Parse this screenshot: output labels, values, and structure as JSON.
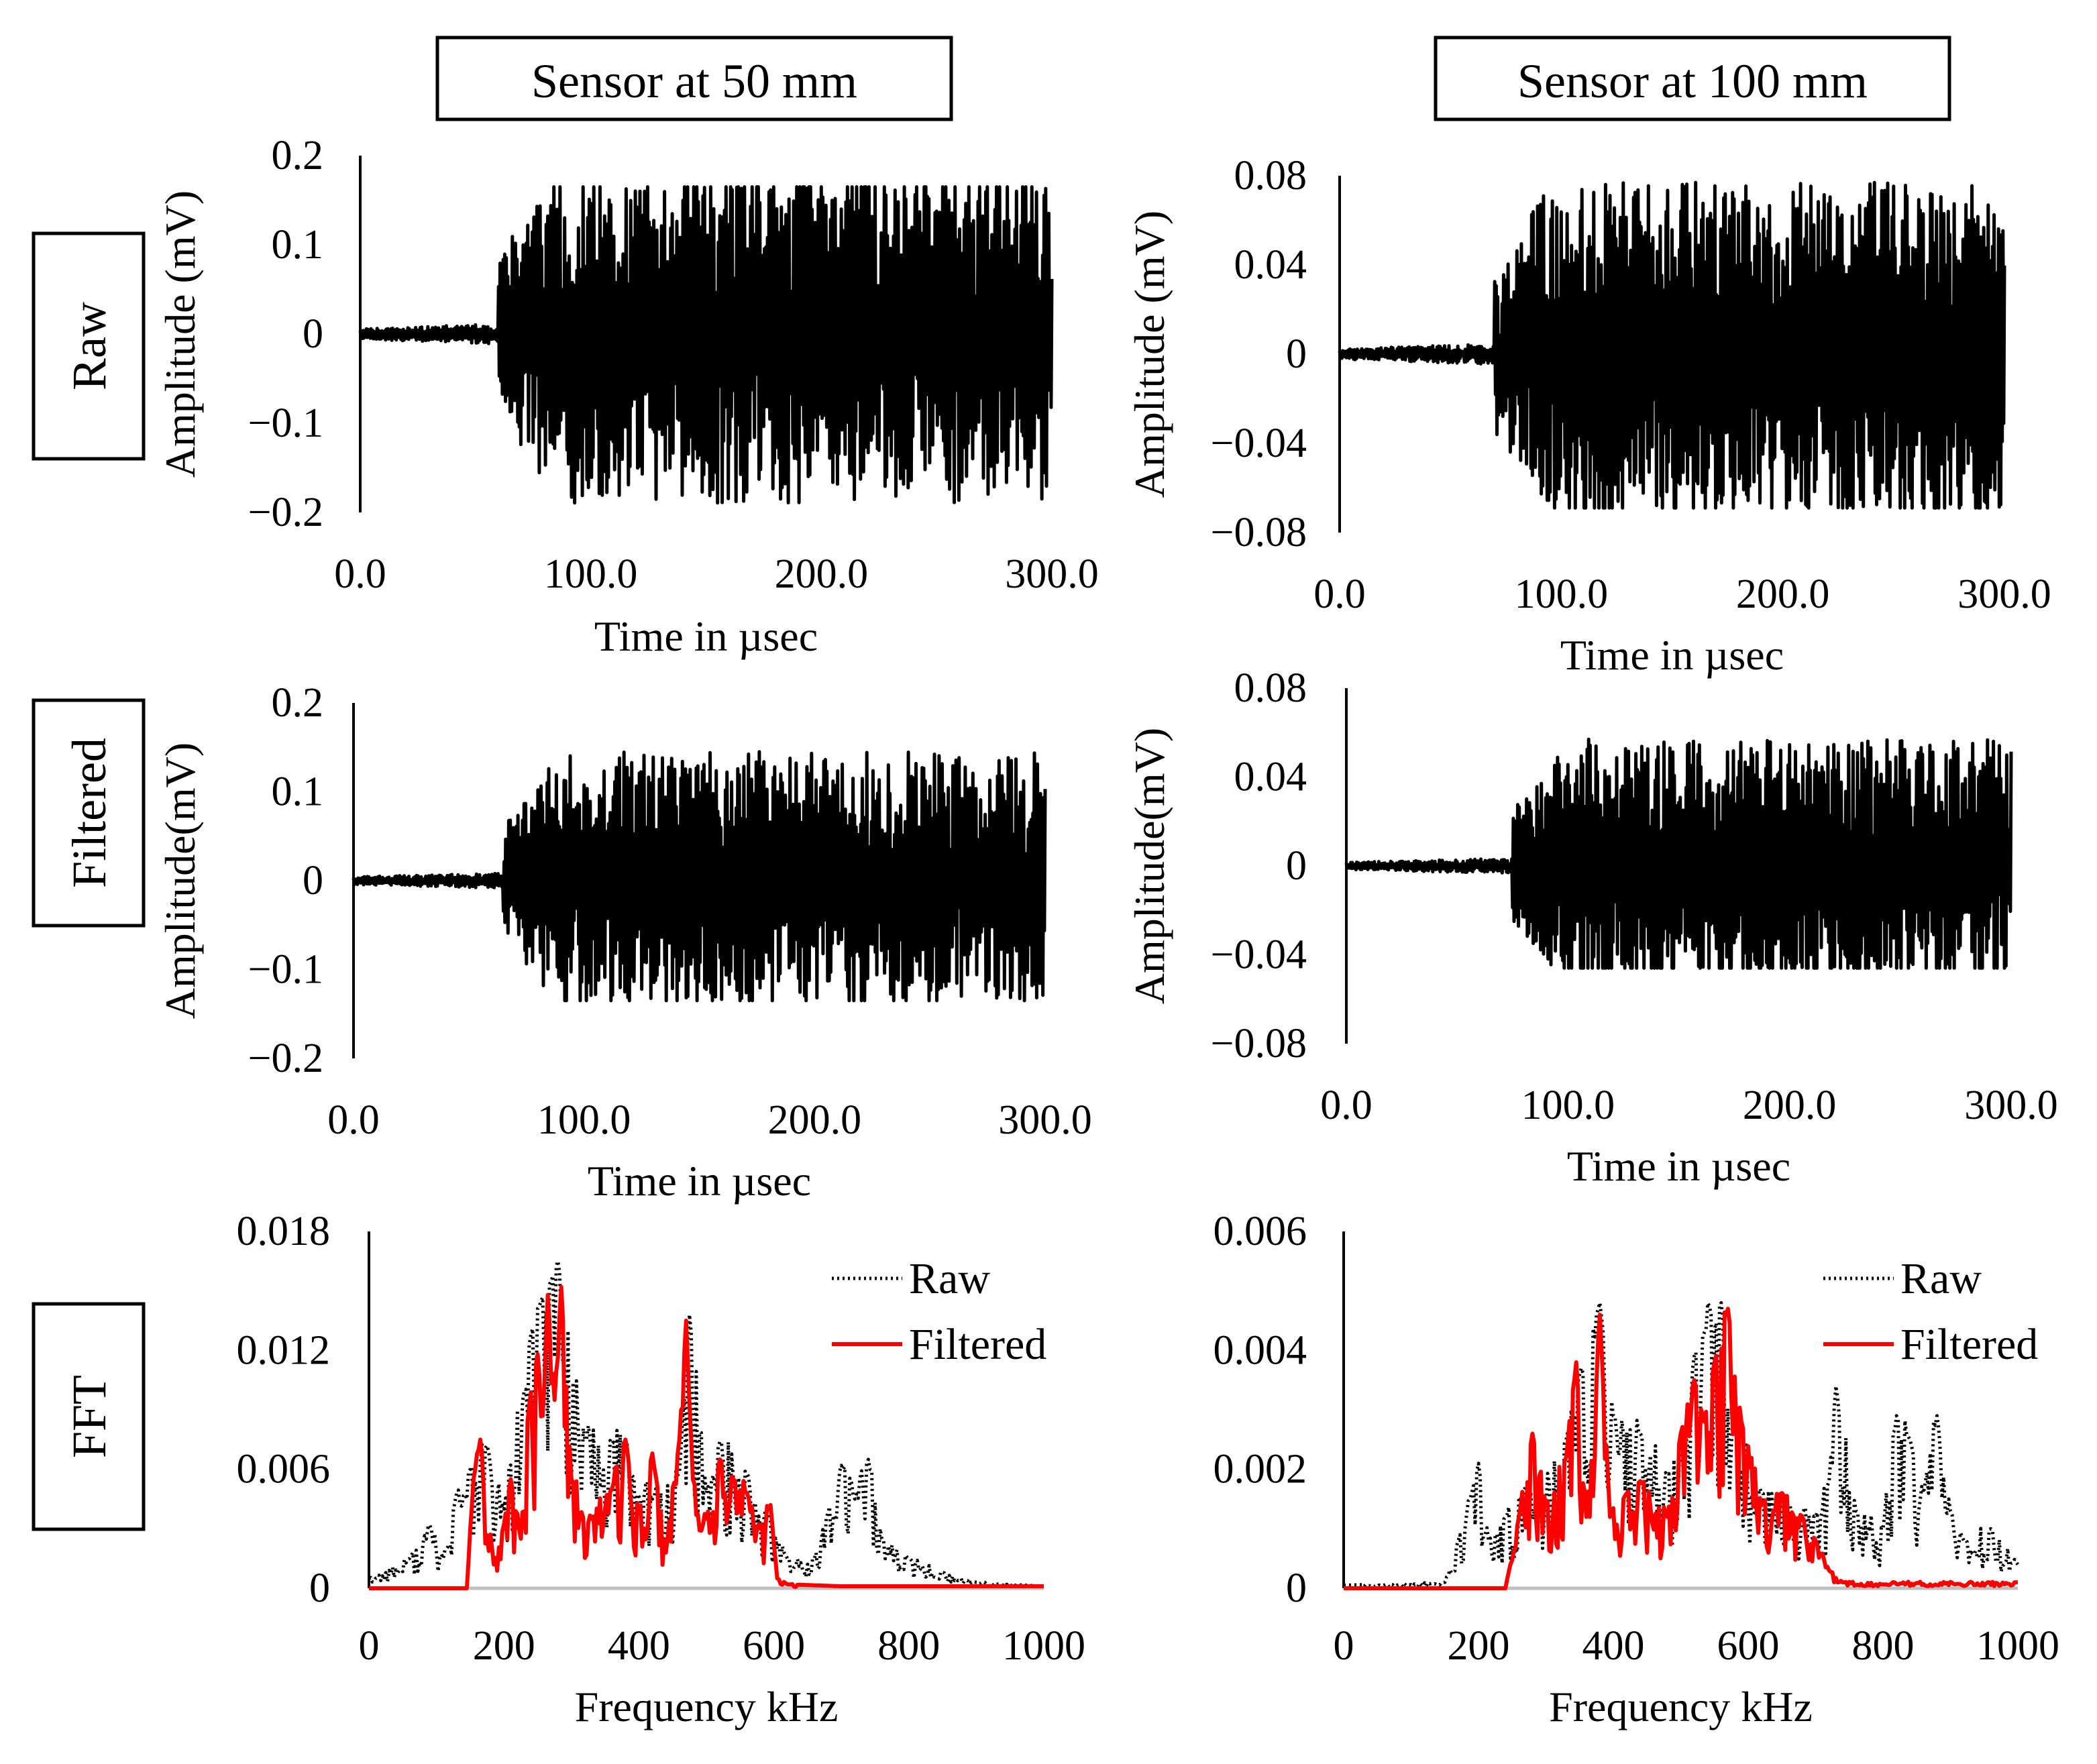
{
  "column_headers": [
    "Sensor at 50 mm",
    "Sensor at 100 mm"
  ],
  "row_headers": [
    "Raw",
    "Filtered",
    "FFT"
  ],
  "colors": {
    "raw": "#000000",
    "filtered": "#ff0000",
    "baseline": "#bfbfbf"
  },
  "chart_data": [
    {
      "id": "raw-50",
      "type": "line",
      "title": "",
      "xlabel": "Time in µsec",
      "ylabel": "Amplitude (mV)",
      "xlim": [
        0,
        300
      ],
      "ylim": [
        -0.2,
        0.2
      ],
      "xticks": [
        "0.0",
        "100.0",
        "200.0",
        "300.0"
      ],
      "yticks": [
        "0.2",
        "0.1",
        "0",
        "−0.1",
        "−0.2"
      ],
      "yticks_values": [
        0.2,
        0.1,
        0,
        -0.1,
        -0.2
      ],
      "legend": "none",
      "series": [
        {
          "signal_onset": 60,
          "x_end": 300,
          "peak_amplitude": 0.165,
          "min_amplitude": -0.19
        }
      ]
    },
    {
      "id": "raw-100",
      "type": "line",
      "title": "",
      "xlabel": "Time in µsec",
      "ylabel": "Amplitude (mV)",
      "xlim": [
        0,
        300
      ],
      "ylim": [
        -0.08,
        0.08
      ],
      "xticks": [
        "0.0",
        "100.0",
        "200.0",
        "300.0"
      ],
      "yticks": [
        "0.08",
        "0.04",
        "0",
        "−0.04",
        "−0.08"
      ],
      "yticks_values": [
        0.08,
        0.04,
        0,
        -0.04,
        -0.08
      ],
      "legend": "none",
      "series": [
        {
          "signal_onset": 70,
          "x_end": 300,
          "peak_amplitude": 0.077,
          "min_amplitude": -0.069
        }
      ]
    },
    {
      "id": "filtered-50",
      "type": "line",
      "title": "",
      "xlabel": "Time in µsec",
      "ylabel": "Amplitude(mV)",
      "xlim": [
        0,
        300
      ],
      "ylim": [
        -0.2,
        0.2
      ],
      "xticks": [
        "0.0",
        "100.0",
        "200.0",
        "300.0"
      ],
      "yticks": [
        "0.2",
        "0.1",
        "0",
        "−0.1",
        "−0.2"
      ],
      "yticks_values": [
        0.2,
        0.1,
        0,
        -0.1,
        -0.2
      ],
      "legend": "none",
      "series": [
        {
          "signal_onset": 65,
          "x_end": 300,
          "peak_amplitude": 0.145,
          "min_amplitude": -0.135
        }
      ]
    },
    {
      "id": "filtered-100",
      "type": "line",
      "title": "",
      "xlabel": "Time in µsec",
      "ylabel": "Amplitude(mV)",
      "xlim": [
        0,
        300
      ],
      "ylim": [
        -0.08,
        0.08
      ],
      "xticks": [
        "0.0",
        "100.0",
        "200.0",
        "300.0"
      ],
      "yticks": [
        "0.08",
        "0.04",
        "0",
        "−0.04",
        "−0.08"
      ],
      "yticks_values": [
        0.08,
        0.04,
        0,
        -0.04,
        -0.08
      ],
      "legend": "none",
      "series": [
        {
          "signal_onset": 75,
          "x_end": 300,
          "peak_amplitude": 0.057,
          "min_amplitude": -0.046
        }
      ]
    },
    {
      "id": "fft-50",
      "type": "line",
      "title": "",
      "xlabel": "Frequency kHz",
      "ylabel": "",
      "xlim": [
        0,
        1000
      ],
      "ylim": [
        0,
        0.018
      ],
      "xticks": [
        "0",
        "200",
        "400",
        "600",
        "800",
        "1000"
      ],
      "yticks": [
        "0.018",
        "0.012",
        "0.006",
        "0"
      ],
      "yticks_values": [
        0.018,
        0.012,
        0.006,
        0
      ],
      "legend": "top-right",
      "series": [
        {
          "name": "Raw",
          "style": "dotted",
          "x": [
            0,
            60,
            90,
            110,
            130,
            150,
            175,
            200,
            240,
            255,
            270,
            280,
            320,
            380,
            420,
            460,
            475,
            500,
            520,
            560,
            590,
            620,
            660,
            680,
            700,
            720,
            740,
            760,
            800,
            850,
            900,
            1000
          ],
          "y": [
            0.0005,
            0.0015,
            0.0032,
            0.0015,
            0.0048,
            0.006,
            0.0072,
            0.004,
            0.0128,
            0.0145,
            0.0155,
            0.0165,
            0.0075,
            0.0075,
            0.0045,
            0.0058,
            0.0138,
            0.0048,
            0.0074,
            0.0058,
            0.0038,
            0.0015,
            0.0015,
            0.0038,
            0.0062,
            0.0045,
            0.0065,
            0.0025,
            0.0015,
            0.0008,
            0.0003,
            0.0001
          ]
        },
        {
          "name": "Filtered",
          "style": "solid",
          "x": [
            0,
            145,
            155,
            165,
            185,
            200,
            210,
            225,
            238,
            250,
            258,
            265,
            275,
            285,
            300,
            330,
            360,
            380,
            400,
            420,
            440,
            460,
            470,
            480,
            500,
            520,
            540,
            560,
            580,
            595,
            605,
            620,
            700,
            1000
          ],
          "y": [
            0,
            0,
            0.0055,
            0.0075,
            0.0012,
            0.0032,
            0.0055,
            0.0025,
            0.0095,
            0.0118,
            0.0085,
            0.0148,
            0.0095,
            0.0152,
            0.0055,
            0.0035,
            0.005,
            0.0075,
            0.0038,
            0.0068,
            0.0018,
            0.0075,
            0.0135,
            0.0055,
            0.0035,
            0.0065,
            0.0055,
            0.0048,
            0.003,
            0.0042,
            0.0005,
            0.0002,
            0.0001,
            0.0001
          ]
        }
      ]
    },
    {
      "id": "fft-100",
      "type": "line",
      "title": "",
      "xlabel": "Frequency kHz",
      "ylabel": "",
      "xlim": [
        0,
        1000
      ],
      "ylim": [
        0,
        0.006
      ],
      "xticks": [
        "0",
        "200",
        "400",
        "600",
        "800",
        "1000"
      ],
      "yticks": [
        "0.006",
        "0.004",
        "0.002",
        "0"
      ],
      "yticks_values": [
        0.006,
        0.004,
        0.002,
        0
      ],
      "legend": "top-right",
      "series": [
        {
          "name": "Raw",
          "style": "dotted",
          "x": [
            0,
            150,
            170,
            190,
            200,
            215,
            240,
            270,
            290,
            330,
            350,
            380,
            400,
            440,
            480,
            500,
            520,
            535,
            560,
            580,
            620,
            660,
            700,
            720,
            730,
            760,
            800,
            820,
            840,
            860,
            880,
            900,
            920,
            960,
            1000
          ],
          "y": [
            5e-05,
            0.0001,
            0.0008,
            0.0016,
            0.0021,
            0.0008,
            0.0012,
            0.0017,
            0.0015,
            0.0025,
            0.0036,
            0.0048,
            0.0029,
            0.0026,
            0.0019,
            0.0021,
            0.0039,
            0.0043,
            0.0048,
            0.0028,
            0.0016,
            0.0014,
            0.0012,
            0.0018,
            0.0034,
            0.0013,
            0.001,
            0.0029,
            0.0025,
            0.0016,
            0.0029,
            0.0013,
            0.0008,
            0.001,
            0.0004
          ]
        },
        {
          "name": "Filtered",
          "style": "solid",
          "x": [
            0,
            240,
            260,
            280,
            300,
            330,
            345,
            360,
            380,
            395,
            420,
            440,
            480,
            500,
            520,
            535,
            550,
            570,
            590,
            620,
            650,
            680,
            700,
            720,
            740,
            1000
          ],
          "y": [
            0,
            0,
            0.0012,
            0.0026,
            0.0014,
            0.0022,
            0.0038,
            0.0012,
            0.0046,
            0.0012,
            0.0016,
            0.0018,
            0.0012,
            0.0026,
            0.0035,
            0.0028,
            0.0038,
            0.0047,
            0.0028,
            0.0014,
            0.0016,
            0.0012,
            0.0008,
            0.0003,
            0.0001,
            0.0001
          ]
        }
      ]
    }
  ]
}
